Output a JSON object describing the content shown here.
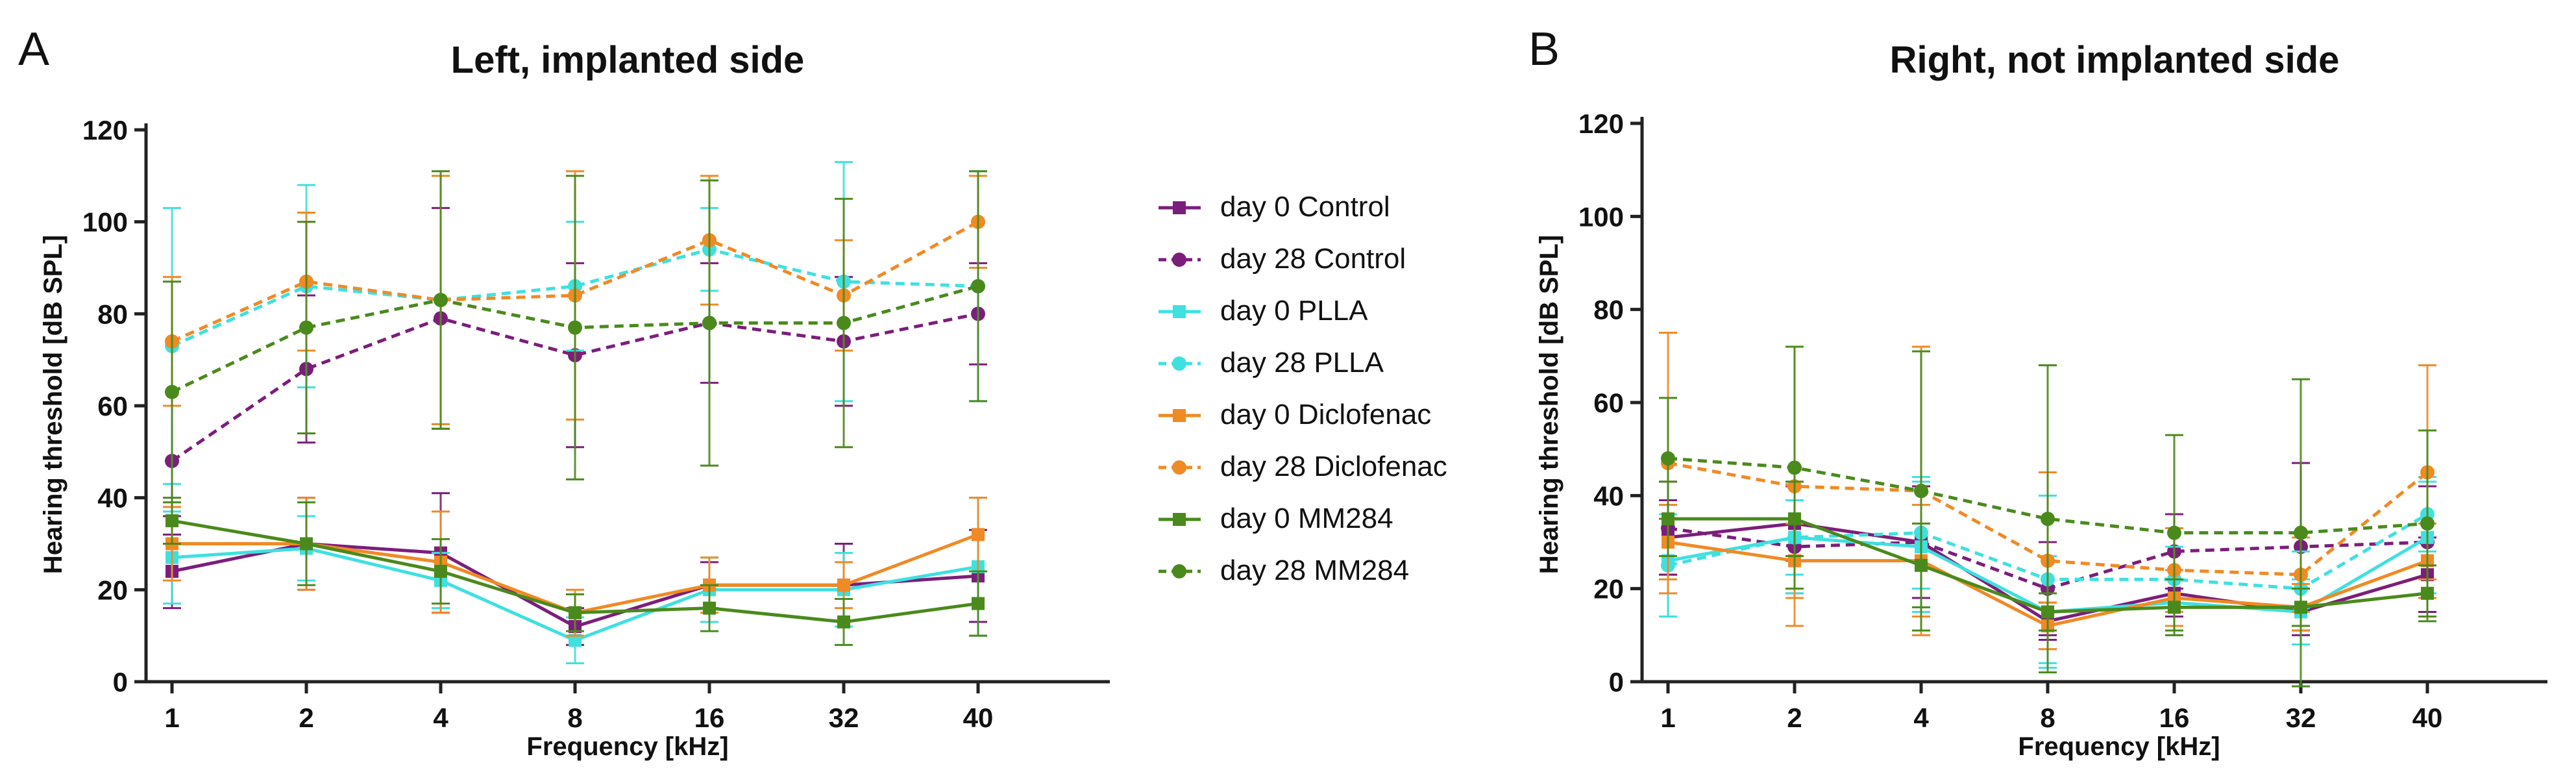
{
  "chart_data": [
    {
      "type": "line",
      "panel_label": "A",
      "title": "Left, implanted side",
      "xlabel": "Frequency [kHz]",
      "ylabel": "Hearing threshold [dB SPL]",
      "categories": [
        "1",
        "2",
        "4",
        "8",
        "16",
        "32",
        "40"
      ],
      "ylim": [
        0,
        120
      ],
      "yticks": [
        "0",
        "20",
        "40",
        "60",
        "80",
        "100",
        "120"
      ],
      "grid": false,
      "series": [
        {
          "name": "day 0 Control",
          "color": "#7b1e7b",
          "dashed": false,
          "marker": "square",
          "values": [
            24,
            30,
            28,
            12,
            21,
            21,
            23
          ],
          "err": [
            8,
            10,
            13,
            4,
            5,
            9,
            10
          ]
        },
        {
          "name": "day 28 Control",
          "color": "#7b1e7b",
          "dashed": true,
          "marker": "circle",
          "values": [
            48,
            68,
            79,
            71,
            78,
            74,
            80
          ],
          "err": [
            12,
            16,
            24,
            20,
            13,
            14,
            11
          ]
        },
        {
          "name": "day 0 PLLA",
          "color": "#3fe0e0",
          "dashed": false,
          "marker": "square",
          "values": [
            27,
            29,
            22,
            9,
            20,
            20,
            25
          ],
          "err": [
            10,
            7,
            6,
            5,
            7,
            8,
            15
          ]
        },
        {
          "name": "day 28 PLLA",
          "color": "#3fe0e0",
          "dashed": true,
          "marker": "circle",
          "values": [
            73,
            86,
            83,
            86,
            94,
            87,
            86
          ],
          "err": [
            30,
            22,
            27,
            14,
            9,
            26,
            25
          ]
        },
        {
          "name": "day 0 Diclofenac",
          "color": "#f08a24",
          "dashed": false,
          "marker": "square",
          "values": [
            30,
            30,
            26,
            15,
            21,
            21,
            32
          ],
          "err": [
            8,
            10,
            11,
            5,
            6,
            5,
            8
          ]
        },
        {
          "name": "day 28 Diclofenac",
          "color": "#f08a24",
          "dashed": true,
          "marker": "circle",
          "values": [
            74,
            87,
            83,
            84,
            96,
            84,
            100
          ],
          "err": [
            14,
            15,
            27,
            27,
            14,
            12,
            10
          ]
        },
        {
          "name": "day 0 MM284",
          "color": "#4a8a1c",
          "dashed": false,
          "marker": "square",
          "values": [
            35,
            30,
            24,
            15,
            16,
            13,
            17
          ],
          "err": [
            5,
            9,
            7,
            4,
            5,
            5,
            7
          ]
        },
        {
          "name": "day 28 MM284",
          "color": "#4a8a1c",
          "dashed": true,
          "marker": "circle",
          "values": [
            63,
            77,
            83,
            77,
            78,
            78,
            86
          ],
          "err": [
            24,
            23,
            28,
            33,
            31,
            27,
            25
          ]
        }
      ]
    },
    {
      "type": "line",
      "panel_label": "B",
      "title": "Right, not implanted side",
      "xlabel": "Frequency [kHz]",
      "ylabel": "Hearing threshold [dB SPL]",
      "categories": [
        "1",
        "2",
        "4",
        "8",
        "16",
        "32",
        "40"
      ],
      "ylim": [
        0,
        120
      ],
      "yticks": [
        "0",
        "20",
        "40",
        "60",
        "80",
        "100",
        "120"
      ],
      "grid": false,
      "series": [
        {
          "name": "day 0 Control",
          "color": "#7b1e7b",
          "dashed": false,
          "marker": "square",
          "values": [
            31,
            34,
            30,
            13,
            19,
            15,
            23
          ],
          "err": [
            8,
            8,
            12,
            4,
            5,
            5,
            8
          ]
        },
        {
          "name": "day 28 Control",
          "color": "#7b1e7b",
          "dashed": true,
          "marker": "circle",
          "values": [
            33,
            29,
            30,
            20,
            28,
            29,
            30
          ],
          "err": [
            10,
            10,
            12,
            10,
            8,
            18,
            12
          ]
        },
        {
          "name": "day 0 PLLA",
          "color": "#3fe0e0",
          "dashed": false,
          "marker": "square",
          "values": [
            26,
            31,
            29,
            15,
            17,
            15,
            31
          ],
          "err": [
            12,
            8,
            14,
            12,
            7,
            7,
            12
          ]
        },
        {
          "name": "day 28 PLLA",
          "color": "#3fe0e0",
          "dashed": true,
          "marker": "circle",
          "values": [
            25,
            31,
            32,
            22,
            22,
            20,
            36
          ],
          "err": [
            11,
            12,
            12,
            18,
            7,
            8,
            8
          ]
        },
        {
          "name": "day 0 Diclofenac",
          "color": "#f08a24",
          "dashed": false,
          "marker": "square",
          "values": [
            30,
            26,
            26,
            12,
            18,
            16,
            26
          ],
          "err": [
            8,
            8,
            12,
            5,
            6,
            5,
            8
          ]
        },
        {
          "name": "day 28 Diclofenac",
          "color": "#f08a24",
          "dashed": true,
          "marker": "circle",
          "values": [
            47,
            42,
            41,
            26,
            24,
            23,
            45
          ],
          "err": [
            28,
            30,
            31,
            19,
            9,
            8,
            23
          ]
        },
        {
          "name": "day 0 MM284",
          "color": "#4a8a1c",
          "dashed": false,
          "marker": "square",
          "values": [
            35,
            35,
            25,
            15,
            16,
            16,
            19
          ],
          "err": [
            8,
            8,
            9,
            4,
            6,
            4,
            6
          ]
        },
        {
          "name": "day 28 MM284",
          "color": "#4a8a1c",
          "dashed": true,
          "marker": "circle",
          "values": [
            48,
            46,
            41,
            35,
            32,
            32,
            34
          ],
          "err": [
            13,
            26,
            30,
            33,
            21,
            33,
            20
          ]
        }
      ]
    }
  ],
  "legend": {
    "placement": "between-panels",
    "entries": [
      {
        "label": "day 0 Control",
        "color": "#7b1e7b",
        "dashed": false,
        "marker": "square"
      },
      {
        "label": "day 28 Control",
        "color": "#7b1e7b",
        "dashed": true,
        "marker": "circle"
      },
      {
        "label": "day 0 PLLA",
        "color": "#3fe0e0",
        "dashed": false,
        "marker": "square"
      },
      {
        "label": "day 28 PLLA",
        "color": "#3fe0e0",
        "dashed": true,
        "marker": "circle"
      },
      {
        "label": "day 0 Diclofenac",
        "color": "#f08a24",
        "dashed": false,
        "marker": "square"
      },
      {
        "label": "day 28 Diclofenac",
        "color": "#f08a24",
        "dashed": true,
        "marker": "circle"
      },
      {
        "label": "day 0 MM284",
        "color": "#4a8a1c",
        "dashed": false,
        "marker": "square"
      },
      {
        "label": "day 28 MM284",
        "color": "#4a8a1c",
        "dashed": true,
        "marker": "circle"
      }
    ]
  }
}
